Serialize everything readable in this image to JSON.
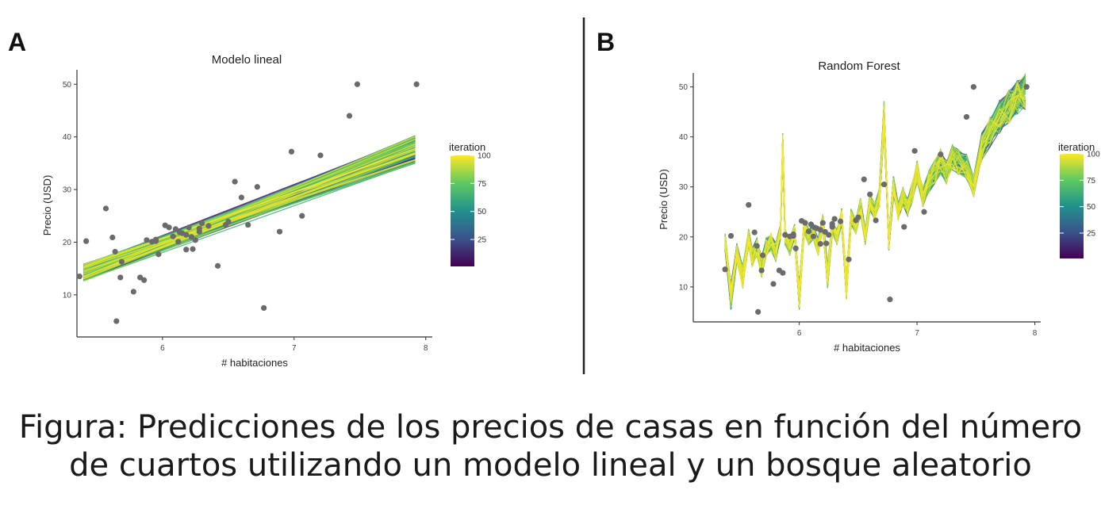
{
  "panel_labels": [
    "A",
    "B"
  ],
  "caption": {
    "line1": "Figura: Predicciones de los precios de casas en función del número",
    "line2": "de cuartos utilizando un modelo lineal y un bosque aleatorio"
  },
  "colors": {
    "points": "#6b6b6b",
    "divider": "#222222",
    "colormap": [
      "#440154",
      "#3b528b",
      "#21918c",
      "#5ec962",
      "#fde725"
    ]
  },
  "observed_points": {
    "x": [
      5.37,
      5.42,
      5.57,
      5.62,
      5.64,
      5.65,
      5.68,
      5.69,
      5.78,
      5.83,
      5.86,
      5.88,
      5.92,
      5.95,
      5.97,
      6.02,
      6.05,
      6.08,
      6.1,
      6.12,
      6.15,
      6.18,
      6.2,
      6.22,
      6.25,
      6.28,
      6.3,
      6.35,
      6.42,
      6.48,
      6.55,
      6.6,
      6.65,
      6.72,
      6.77,
      6.89,
      6.98,
      7.06,
      7.2,
      7.42,
      7.48,
      7.93,
      6.13,
      6.23,
      6.5,
      5.95,
      6.28,
      6.18
    ],
    "y": [
      13.5,
      20.2,
      26.4,
      20.9,
      18.2,
      5.0,
      13.3,
      16.3,
      10.6,
      13.3,
      12.8,
      20.4,
      20.1,
      20.5,
      17.7,
      23.2,
      22.8,
      21.1,
      22.5,
      20.1,
      21.7,
      18.6,
      22.8,
      21.0,
      20.4,
      22.0,
      23.6,
      23.1,
      15.5,
      23.3,
      31.5,
      28.5,
      23.3,
      30.5,
      7.5,
      22.0,
      37.2,
      25.0,
      36.5,
      44.0,
      50.0,
      50.0,
      21.9,
      18.7,
      23.9,
      20.2,
      22.6,
      21.4
    ]
  },
  "chart_data": [
    {
      "type": "line",
      "title": "Modelo lineal",
      "xlabel": "# habitaciones",
      "ylabel": "Precio (USD)",
      "xlim": [
        5.35,
        8.05
      ],
      "ylim": [
        2,
        52
      ],
      "xticks": [
        "6",
        "7",
        "8"
      ],
      "yticks": [
        "10",
        "20",
        "30",
        "40",
        "50"
      ],
      "grid": false,
      "legend": {
        "title": "iteration",
        "position": "right",
        "ticks": [
          "100",
          "75",
          "50",
          "25"
        ],
        "range": [
          1,
          100
        ]
      },
      "series_summary": "100 linear fits, one per iteration, colored by iteration",
      "fit_endpoints_x": [
        5.4,
        7.92
      ],
      "fit_y_at_5_4": [
        12.6,
        15.8
      ],
      "fit_y_at_7_92": [
        35.0,
        40.3
      ]
    },
    {
      "type": "line",
      "title": "Random Forest",
      "xlabel": "# habitaciones",
      "ylabel": "Precio (USD)",
      "xlim": [
        5.1,
        8.05
      ],
      "ylim": [
        3,
        52
      ],
      "xticks": [
        "6",
        "7",
        "8"
      ],
      "yticks": [
        "10",
        "20",
        "30",
        "40",
        "50"
      ],
      "grid": false,
      "legend": {
        "title": "iteration",
        "position": "right",
        "ticks": [
          "100",
          "75",
          "50",
          "25"
        ],
        "range": [
          1,
          100
        ]
      },
      "series_summary": "100 random forest prediction curves, one per iteration, colored by iteration",
      "base_curve": {
        "x": [
          5.37,
          5.42,
          5.47,
          5.52,
          5.57,
          5.6,
          5.64,
          5.68,
          5.72,
          5.76,
          5.8,
          5.84,
          5.86,
          5.88,
          5.92,
          5.96,
          6.0,
          6.04,
          6.08,
          6.12,
          6.16,
          6.2,
          6.24,
          6.28,
          6.32,
          6.36,
          6.4,
          6.44,
          6.48,
          6.52,
          6.56,
          6.6,
          6.64,
          6.68,
          6.72,
          6.76,
          6.8,
          6.84,
          6.88,
          6.92,
          6.96,
          7.0,
          7.05,
          7.1,
          7.15,
          7.2,
          7.25,
          7.3,
          7.35,
          7.42,
          7.48,
          7.55,
          7.62,
          7.7,
          7.78,
          7.85,
          7.92
        ],
        "y": [
          19,
          8,
          17,
          12,
          20,
          16,
          18,
          14,
          18,
          19,
          17,
          21,
          38,
          20,
          18,
          21,
          8,
          22,
          20,
          21,
          18,
          23,
          12,
          22,
          20,
          24,
          10,
          24,
          22,
          26,
          20,
          27,
          25,
          28,
          44,
          19,
          30,
          25,
          28,
          26,
          29,
          33,
          28,
          31,
          33,
          35,
          33,
          36,
          35,
          34,
          30,
          38,
          41,
          44,
          46,
          48,
          49
        ]
      }
    }
  ]
}
